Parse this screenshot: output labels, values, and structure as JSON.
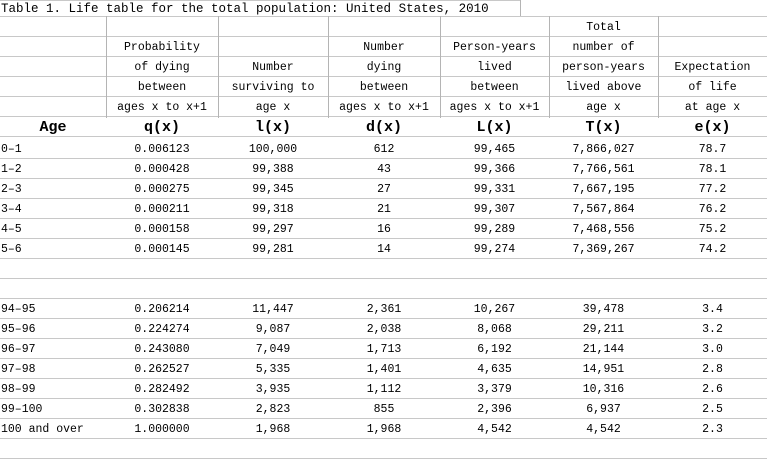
{
  "title": "Table 1. Life table for the total population: United States, 2010",
  "columns": [
    {
      "header_lines": [
        "",
        "",
        "",
        "",
        ""
      ],
      "symbol": "Age"
    },
    {
      "header_lines": [
        "",
        "Probability",
        "of dying",
        "between",
        "ages x to x+1"
      ],
      "symbol": "q(x)"
    },
    {
      "header_lines": [
        "",
        "",
        "Number",
        "surviving to",
        "age x"
      ],
      "symbol": "l(x)"
    },
    {
      "header_lines": [
        "",
        "Number",
        "dying",
        "between",
        "ages x to x+1"
      ],
      "symbol": "d(x)"
    },
    {
      "header_lines": [
        "",
        "Person-years",
        "lived",
        "between",
        "ages x to x+1"
      ],
      "symbol": "L(x)"
    },
    {
      "header_lines": [
        "Total",
        "number of",
        "person-years",
        "lived above",
        "age x"
      ],
      "symbol": "T(x)"
    },
    {
      "header_lines": [
        "",
        "",
        "Expectation",
        "of life",
        "at age x"
      ],
      "symbol": "e(x)"
    }
  ],
  "rows": [
    [
      "0–1",
      "0.006123",
      "100,000",
      "612",
      "99,465",
      "7,866,027",
      "78.7"
    ],
    [
      "1–2",
      "0.000428",
      "99,388",
      "43",
      "99,366",
      "7,766,561",
      "78.1"
    ],
    [
      "2–3",
      "0.000275",
      "99,345",
      "27",
      "99,331",
      "7,667,195",
      "77.2"
    ],
    [
      "3–4",
      "0.000211",
      "99,318",
      "21",
      "99,307",
      "7,567,864",
      "76.2"
    ],
    [
      "4–5",
      "0.000158",
      "99,297",
      "16",
      "99,289",
      "7,468,556",
      "75.2"
    ],
    [
      "5–6",
      "0.000145",
      "99,281",
      "14",
      "99,274",
      "7,369,267",
      "74.2"
    ],
    [
      "",
      "",
      "",
      "",
      "",
      "",
      ""
    ],
    [
      "",
      "",
      "",
      "",
      "",
      "",
      ""
    ],
    [
      "94–95",
      "0.206214",
      "11,447",
      "2,361",
      "10,267",
      "39,478",
      "3.4"
    ],
    [
      "95–96",
      "0.224274",
      "9,087",
      "2,038",
      "8,068",
      "29,211",
      "3.2"
    ],
    [
      "96–97",
      "0.243080",
      "7,049",
      "1,713",
      "6,192",
      "21,144",
      "3.0"
    ],
    [
      "97–98",
      "0.262527",
      "5,335",
      "1,401",
      "4,635",
      "14,951",
      "2.8"
    ],
    [
      "98–99",
      "0.282492",
      "3,935",
      "1,112",
      "3,379",
      "10,316",
      "2.6"
    ],
    [
      "99–100",
      "0.302838",
      "2,823",
      "855",
      "2,396",
      "6,937",
      "2.5"
    ],
    [
      "100 and over",
      "1.000000",
      "1,968",
      "1,968",
      "4,542",
      "4,542",
      "2.3"
    ]
  ]
}
